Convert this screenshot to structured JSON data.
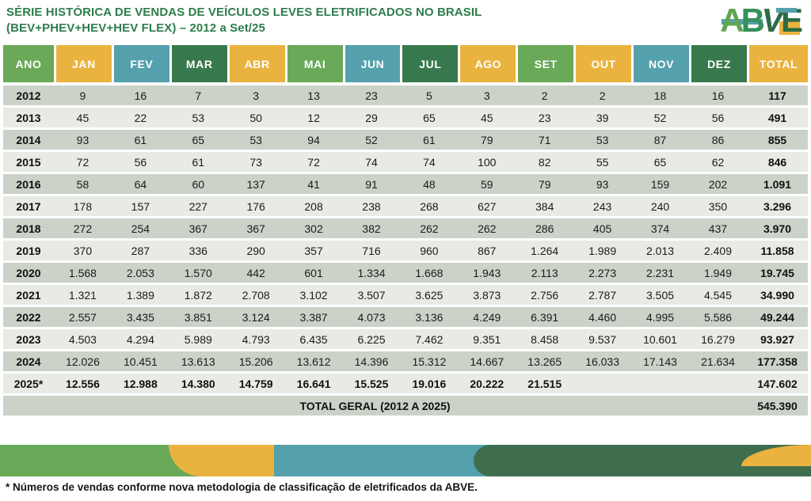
{
  "title": {
    "line1": "SÉRIE HISTÓRICA DE VENDAS DE VEÍCULOS LEVES ELETRIFICADOS NO BRASIL",
    "line2": "(BEV+PHEV+HEV+HEV FLEX) – 2012 a Set/25"
  },
  "logo": {
    "letters": [
      "A",
      "B",
      "V",
      "E"
    ]
  },
  "footnote": "* Números de vendas conforme nova metodologia de classificação de eletrificados da ABVE.",
  "colors": {
    "title_green": "#2e7d4b",
    "header_green": "#69a958",
    "header_yellow": "#eab33f",
    "header_teal": "#55a0ad",
    "header_darkgreen": "#38784d",
    "band_darkgreen": "#3e6e4e",
    "row_dark": "#cbd2c8",
    "row_light": "#e8eae5",
    "logo_a": "#5fa653",
    "logo_b": "#35905a",
    "logo_v": "#2d6b44",
    "logo_e": "#2d6b44"
  },
  "chart_data": {
    "type": "table",
    "title": "SÉRIE HISTÓRICA DE VENDAS DE VEÍCULOS LEVES ELETRIFICADOS NO BRASIL (BEV+PHEV+HEV+HEV FLEX) – 2012 a Set/25",
    "columns": [
      "ANO",
      "JAN",
      "FEV",
      "MAR",
      "ABR",
      "MAI",
      "JUN",
      "JUL",
      "AGO",
      "SET",
      "OUT",
      "NOV",
      "DEZ",
      "TOTAL"
    ],
    "column_colors": [
      "green",
      "yellow",
      "teal",
      "darkgreen",
      "yellow",
      "green",
      "teal",
      "darkgreen",
      "yellow",
      "green",
      "yellow",
      "teal",
      "darkgreen",
      "yellow"
    ],
    "rows": [
      {
        "year": "2012",
        "values": [
          "9",
          "16",
          "7",
          "3",
          "13",
          "23",
          "5",
          "3",
          "2",
          "2",
          "18",
          "16"
        ],
        "total": "117",
        "bold": false
      },
      {
        "year": "2013",
        "values": [
          "45",
          "22",
          "53",
          "50",
          "12",
          "29",
          "65",
          "45",
          "23",
          "39",
          "52",
          "56"
        ],
        "total": "491",
        "bold": false
      },
      {
        "year": "2014",
        "values": [
          "93",
          "61",
          "65",
          "53",
          "94",
          "52",
          "61",
          "79",
          "71",
          "53",
          "87",
          "86"
        ],
        "total": "855",
        "bold": false
      },
      {
        "year": "2015",
        "values": [
          "72",
          "56",
          "61",
          "73",
          "72",
          "74",
          "74",
          "100",
          "82",
          "55",
          "65",
          "62"
        ],
        "total": "846",
        "bold": false
      },
      {
        "year": "2016",
        "values": [
          "58",
          "64",
          "60",
          "137",
          "41",
          "91",
          "48",
          "59",
          "79",
          "93",
          "159",
          "202"
        ],
        "total": "1.091",
        "bold": false
      },
      {
        "year": "2017",
        "values": [
          "178",
          "157",
          "227",
          "176",
          "208",
          "238",
          "268",
          "627",
          "384",
          "243",
          "240",
          "350"
        ],
        "total": "3.296",
        "bold": false
      },
      {
        "year": "2018",
        "values": [
          "272",
          "254",
          "367",
          "367",
          "302",
          "382",
          "262",
          "262",
          "286",
          "405",
          "374",
          "437"
        ],
        "total": "3.970",
        "bold": false
      },
      {
        "year": "2019",
        "values": [
          "370",
          "287",
          "336",
          "290",
          "357",
          "716",
          "960",
          "867",
          "1.264",
          "1.989",
          "2.013",
          "2.409"
        ],
        "total": "11.858",
        "bold": false
      },
      {
        "year": "2020",
        "values": [
          "1.568",
          "2.053",
          "1.570",
          "442",
          "601",
          "1.334",
          "1.668",
          "1.943",
          "2.113",
          "2.273",
          "2.231",
          "1.949"
        ],
        "total": "19.745",
        "bold": false
      },
      {
        "year": "2021",
        "values": [
          "1.321",
          "1.389",
          "1.872",
          "2.708",
          "3.102",
          "3.507",
          "3.625",
          "3.873",
          "2.756",
          "2.787",
          "3.505",
          "4.545"
        ],
        "total": "34.990",
        "bold": false
      },
      {
        "year": "2022",
        "values": [
          "2.557",
          "3.435",
          "3.851",
          "3.124",
          "3.387",
          "4.073",
          "3.136",
          "4.249",
          "6.391",
          "4.460",
          "4.995",
          "5.586"
        ],
        "total": "49.244",
        "bold": false
      },
      {
        "year": "2023",
        "values": [
          "4.503",
          "4.294",
          "5.989",
          "4.793",
          "6.435",
          "6.225",
          "7.462",
          "9.351",
          "8.458",
          "9.537",
          "10.601",
          "16.279"
        ],
        "total": "93.927",
        "bold": false
      },
      {
        "year": "2024",
        "values": [
          "12.026",
          "10.451",
          "13.613",
          "15.206",
          "13.612",
          "14.396",
          "15.312",
          "14.667",
          "13.265",
          "16.033",
          "17.143",
          "21.634"
        ],
        "total": "177.358",
        "bold": false
      },
      {
        "year": "2025*",
        "values": [
          "12.556",
          "12.988",
          "14.380",
          "14.759",
          "16.641",
          "15.525",
          "19.016",
          "20.222",
          "21.515",
          "",
          "",
          ""
        ],
        "total": "147.602",
        "bold": true
      }
    ],
    "total_row": {
      "label": "TOTAL GERAL (2012 A 2025)",
      "total": "545.390"
    }
  }
}
